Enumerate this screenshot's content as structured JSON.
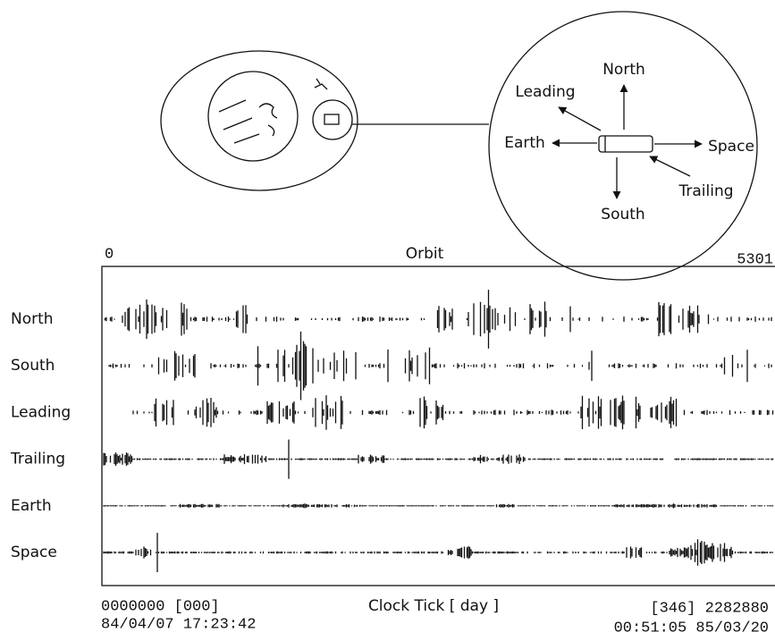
{
  "diagram": {
    "labels": {
      "north": "North",
      "leading": "Leading",
      "earth": "Earth",
      "space": "Space",
      "trailing": "Trailing",
      "south": "South"
    }
  },
  "plot": {
    "top_left": "0",
    "title": "Orbit",
    "top_right": "5301",
    "rows": [
      "North",
      "South",
      "Leading",
      "Trailing",
      "Earth",
      "Space"
    ],
    "bottom_left": [
      "0000000 [000]",
      "84/04/07 17:23:42"
    ],
    "x_label": "Clock Tick [ day ]",
    "bottom_right": [
      "[346] 2282880",
      "00:51:05 85/03/20"
    ]
  }
}
